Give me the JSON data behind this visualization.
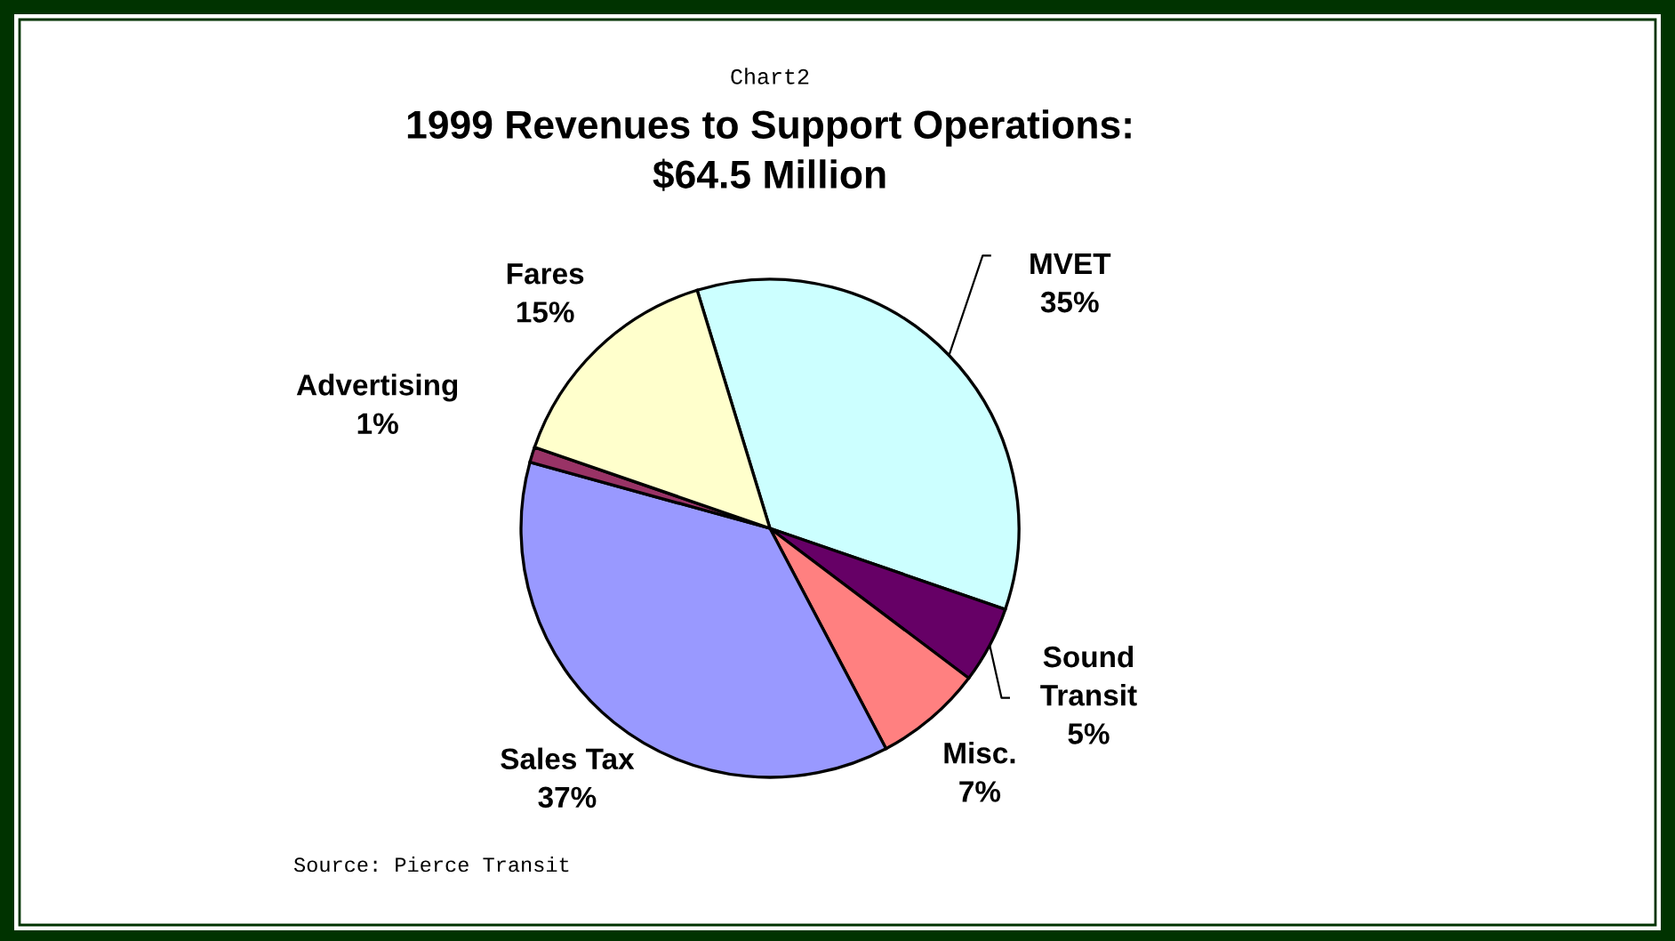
{
  "chart_data": {
    "type": "pie",
    "subtitle": "Chart2",
    "title": "1999 Revenues to Support Operations:\n$64.5 Million",
    "categories": [
      "MVET",
      "Sound\nTransit",
      "Misc.",
      "Sales Tax",
      "Advertising",
      "Fares"
    ],
    "values": [
      35,
      5,
      7,
      37,
      1,
      15
    ],
    "colors": [
      "#ccffff",
      "#660066",
      "#ff8080",
      "#9999ff",
      "#993366",
      "#ffffcc"
    ],
    "value_labels": [
      "35%",
      "5%",
      "7%",
      "37%",
      "1%",
      "15%"
    ],
    "legend": false,
    "annotations": [
      "Source: Pierce Transit"
    ]
  }
}
